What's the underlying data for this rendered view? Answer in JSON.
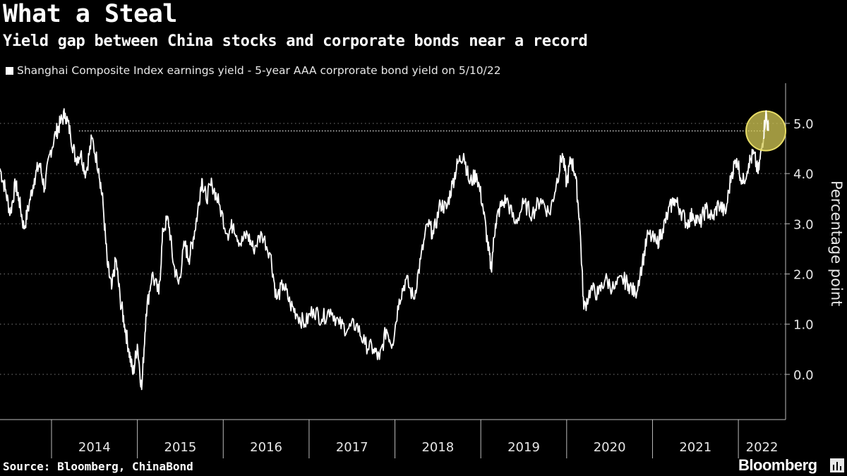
{
  "header": {
    "title": "What a Steal",
    "subtitle": "Yield gap between China stocks and corporate bonds near a record",
    "legend": "Shanghai Composite Index earnings yield - 5-year AAA corprorate bond yield on 5/10/22"
  },
  "footer": {
    "source": "Source: Bloomberg, ChinaBond",
    "brand": "Bloomberg"
  },
  "colors": {
    "background": "#000000",
    "line": "#ffffff",
    "highlight": "#d4c955",
    "grid": "#7a7a7a"
  },
  "chart_data": {
    "type": "line",
    "title": "What a Steal",
    "subtitle": "Yield gap between China stocks and corporate bonds near a record",
    "ylabel": "Percentage point",
    "xlabel": "",
    "ylim": [
      -0.9,
      5.8
    ],
    "yticks": [
      0.0,
      1.0,
      2.0,
      3.0,
      4.0,
      5.0
    ],
    "ytick_labels": [
      "0.0",
      "1.0",
      "2.0",
      "3.0",
      "4.0",
      "5.0"
    ],
    "xlim": [
      2013.4,
      2022.55
    ],
    "year_labels": [
      "2014",
      "2015",
      "2016",
      "2017",
      "2018",
      "2019",
      "2020",
      "2021",
      "2022"
    ],
    "year_boundaries": [
      2014,
      2015,
      2016,
      2017,
      2018,
      2019,
      2020,
      2021,
      2022
    ],
    "series": [
      {
        "name": "Shanghai Composite Index earnings yield - 5-year AAA corprorate bond yield",
        "x": [
          2013.4,
          2013.46,
          2013.52,
          2013.58,
          2013.62,
          2013.68,
          2013.74,
          2013.8,
          2013.86,
          2013.92,
          2013.98,
          2014.05,
          2014.1,
          2014.16,
          2014.22,
          2014.28,
          2014.34,
          2014.4,
          2014.47,
          2014.55,
          2014.6,
          2014.65,
          2014.7,
          2014.75,
          2014.8,
          2014.85,
          2014.9,
          2014.95,
          2015.0,
          2015.05,
          2015.1,
          2015.17,
          2015.25,
          2015.3,
          2015.36,
          2015.42,
          2015.48,
          2015.55,
          2015.6,
          2015.65,
          2015.7,
          2015.75,
          2015.8,
          2015.87,
          2015.95,
          2016.05,
          2016.12,
          2016.2,
          2016.28,
          2016.35,
          2016.45,
          2016.55,
          2016.62,
          2016.7,
          2016.78,
          2016.86,
          2016.95,
          2017.05,
          2017.15,
          2017.25,
          2017.35,
          2017.45,
          2017.55,
          2017.65,
          2017.75,
          2017.82,
          2017.9,
          2017.97,
          2018.05,
          2018.13,
          2018.22,
          2018.3,
          2018.38,
          2018.45,
          2018.53,
          2018.6,
          2018.67,
          2018.73,
          2018.8,
          2018.87,
          2018.95,
          2019.02,
          2019.08,
          2019.12,
          2019.17,
          2019.22,
          2019.3,
          2019.4,
          2019.5,
          2019.6,
          2019.7,
          2019.8,
          2019.88,
          2019.95,
          2020.0,
          2020.05,
          2020.1,
          2020.15,
          2020.2,
          2020.28,
          2020.37,
          2020.45,
          2020.55,
          2020.65,
          2020.72,
          2020.8,
          2020.88,
          2020.95,
          2021.05,
          2021.12,
          2021.18,
          2021.25,
          2021.32,
          2021.4,
          2021.47,
          2021.55,
          2021.62,
          2021.7,
          2021.77,
          2021.85,
          2021.92,
          2021.98,
          2022.05,
          2022.12,
          2022.18,
          2022.23,
          2022.28,
          2022.32,
          2022.35
        ],
        "values": [
          4.1,
          3.7,
          3.2,
          3.8,
          3.5,
          2.9,
          3.4,
          3.9,
          4.2,
          3.7,
          4.4,
          4.8,
          5.0,
          5.2,
          4.8,
          4.3,
          4.4,
          4.0,
          4.7,
          4.1,
          3.4,
          2.2,
          1.7,
          2.3,
          1.5,
          1.0,
          0.5,
          0.0,
          0.6,
          -0.3,
          1.2,
          2.0,
          1.6,
          2.9,
          3.1,
          2.2,
          1.8,
          2.6,
          2.3,
          2.7,
          3.2,
          3.9,
          3.5,
          3.8,
          3.4,
          2.8,
          3.0,
          2.6,
          2.8,
          2.5,
          2.8,
          2.4,
          1.5,
          1.8,
          1.4,
          1.2,
          1.0,
          1.3,
          1.1,
          1.3,
          1.0,
          0.9,
          1.0,
          0.6,
          0.5,
          0.3,
          0.9,
          0.6,
          1.5,
          1.9,
          1.5,
          2.3,
          3.0,
          2.8,
          3.4,
          3.3,
          3.8,
          4.2,
          4.4,
          3.8,
          4.0,
          3.4,
          2.6,
          2.1,
          3.0,
          3.3,
          3.5,
          3.0,
          3.4,
          3.2,
          3.5,
          3.2,
          3.8,
          4.4,
          3.8,
          4.3,
          4.0,
          3.1,
          1.3,
          1.7,
          1.6,
          1.9,
          1.7,
          1.9,
          1.8,
          1.6,
          2.2,
          2.8,
          2.6,
          2.9,
          3.2,
          3.5,
          3.3,
          3.0,
          3.2,
          3.0,
          3.3,
          3.1,
          3.4,
          3.2,
          4.0,
          4.3,
          3.8,
          4.2,
          4.4,
          4.0,
          4.6,
          5.2,
          4.85
        ]
      }
    ],
    "reference_line": {
      "value": 4.85,
      "x_start": 2014.32,
      "style": "dotted"
    },
    "highlight": {
      "x": 2022.32,
      "y": 4.85,
      "shape": "circle"
    }
  }
}
